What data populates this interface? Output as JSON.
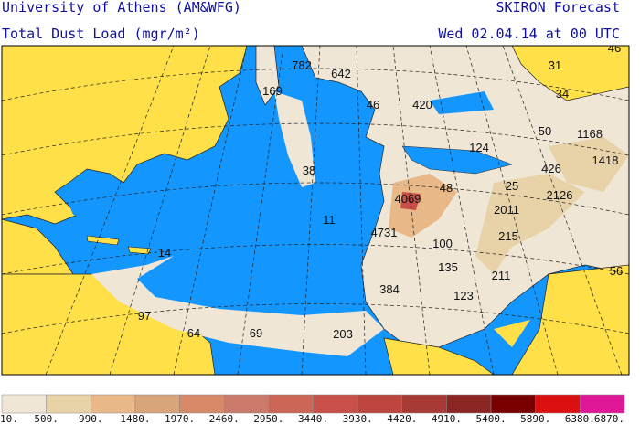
{
  "header": {
    "title": "University of Athens (AM&WFG)",
    "product": "SKIRON Forecast",
    "field": "Total Dust Load (mgr/m²)",
    "date": "Wed 02.04.14 at 00 UTC"
  },
  "map": {
    "labels": [
      782,
      642,
      169,
      46,
      420,
      31,
      34,
      50,
      1168,
      124,
      1418,
      426,
      38,
      48,
      25,
      2126,
      4069,
      11,
      2011,
      4731,
      100,
      215,
      14,
      135,
      211,
      56,
      384,
      123,
      97,
      64,
      69,
      203,
      46
    ]
  },
  "legend": {
    "colors": [
      "#efe6d6",
      "#e8d2a8",
      "#e8b888",
      "#d8a47a",
      "#d88a68",
      "#cc7a6c",
      "#cc6656",
      "#c85048",
      "#bc463e",
      "#a83a36",
      "#8c2624",
      "#780000",
      "#dc1010",
      "#e01898"
    ],
    "labels": [
      "10.",
      "500.",
      "990.",
      "1480.",
      "1970.",
      "2460.",
      "2950.",
      "3440.",
      "3930.",
      "4420.",
      "4910.",
      "5400.",
      "5890.",
      "6380.",
      "6870."
    ]
  }
}
